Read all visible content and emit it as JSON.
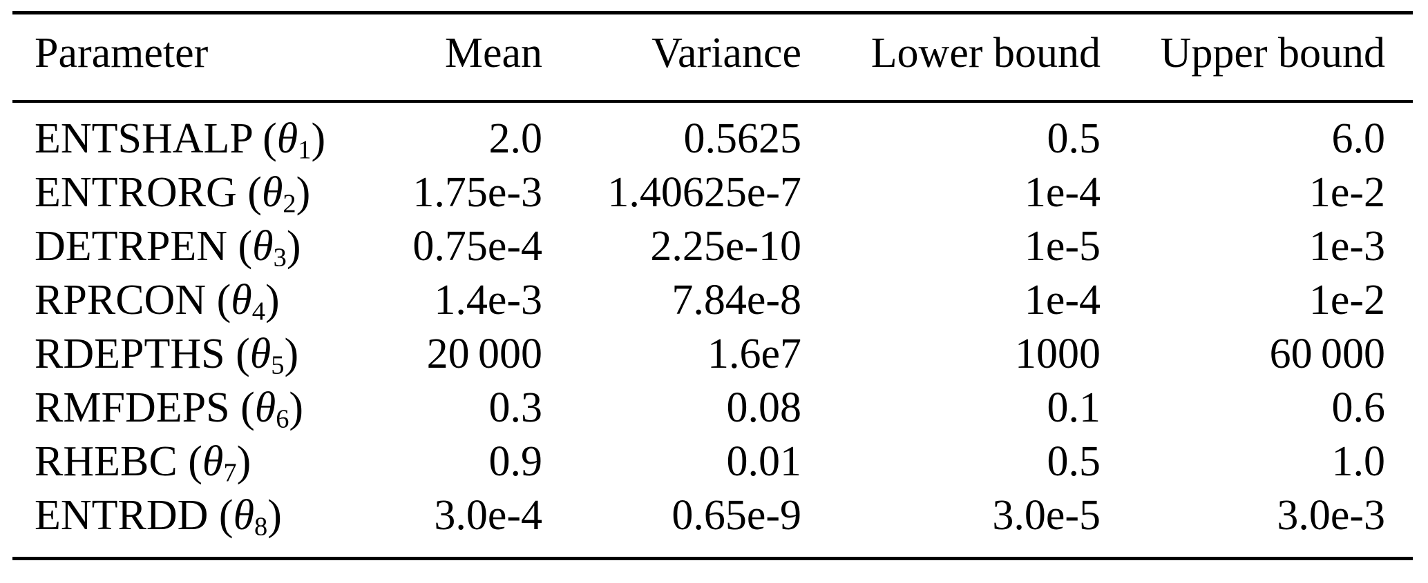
{
  "table": {
    "colors": {
      "text": "#000000",
      "rule": "#000000",
      "background": "#ffffff"
    },
    "columns": [
      {
        "label": "Parameter"
      },
      {
        "label": "Mean"
      },
      {
        "label": "Variance"
      },
      {
        "label": "Lower bound"
      },
      {
        "label": "Upper bound"
      }
    ],
    "rows": [
      {
        "name": "ENTSHALP",
        "open": " (",
        "theta": "θ",
        "sub": "1",
        "close": ")",
        "mean": "2.0",
        "variance": "0.5625",
        "lower": "0.5",
        "upper": "6.0"
      },
      {
        "name": "ENTRORG",
        "open": " (",
        "theta": "θ",
        "sub": "2",
        "close": ")",
        "mean": "1.75e-3",
        "variance": "1.40625e-7",
        "lower": "1e-4",
        "upper": "1e-2"
      },
      {
        "name": "DETRPEN",
        "open": " (",
        "theta": "θ",
        "sub": "3",
        "close": ")",
        "mean": "0.75e-4",
        "variance": "2.25e-10",
        "lower": "1e-5",
        "upper": "1e-3"
      },
      {
        "name": "RPRCON",
        "open": " (",
        "theta": "θ",
        "sub": "4",
        "close": ")",
        "mean": "1.4e-3",
        "variance": "7.84e-8",
        "lower": "1e-4",
        "upper": "1e-2"
      },
      {
        "name": "RDEPTHS",
        "open": " (",
        "theta": "θ",
        "sub": "5",
        "close": ")",
        "mean": "20 000",
        "variance": "1.6e7",
        "lower": "1000",
        "upper": "60 000"
      },
      {
        "name": "RMFDEPS",
        "open": " (",
        "theta": "θ",
        "sub": "6",
        "close": ")",
        "mean": "0.3",
        "variance": "0.08",
        "lower": "0.1",
        "upper": "0.6"
      },
      {
        "name": "RHEBC",
        "open": " (",
        "theta": "θ",
        "sub": "7",
        "close": ")",
        "mean": "0.9",
        "variance": "0.01",
        "lower": "0.5",
        "upper": "1.0"
      },
      {
        "name": "ENTRDD",
        "open": " (",
        "theta": "θ",
        "sub": "8",
        "close": ")",
        "mean": "3.0e-4",
        "variance": "0.65e-9",
        "lower": "3.0e-5",
        "upper": "3.0e-3"
      }
    ]
  }
}
